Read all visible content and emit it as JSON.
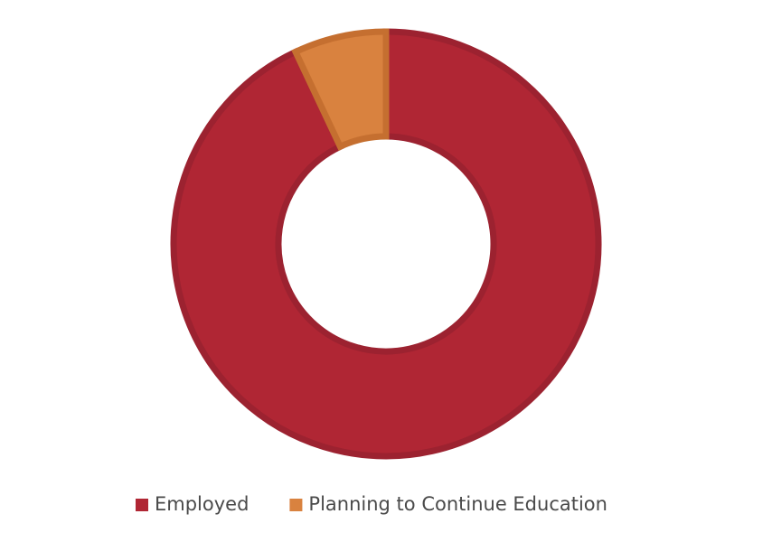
{
  "chart_data": {
    "type": "donut",
    "categories": [
      "Employed",
      "Planning to Continue Education"
    ],
    "values": [
      93,
      7
    ],
    "colors": [
      "#b02634",
      "#d9823f"
    ],
    "stroke_colors": [
      "#9c2230",
      "#c56f30"
    ],
    "legend": "bottom"
  }
}
